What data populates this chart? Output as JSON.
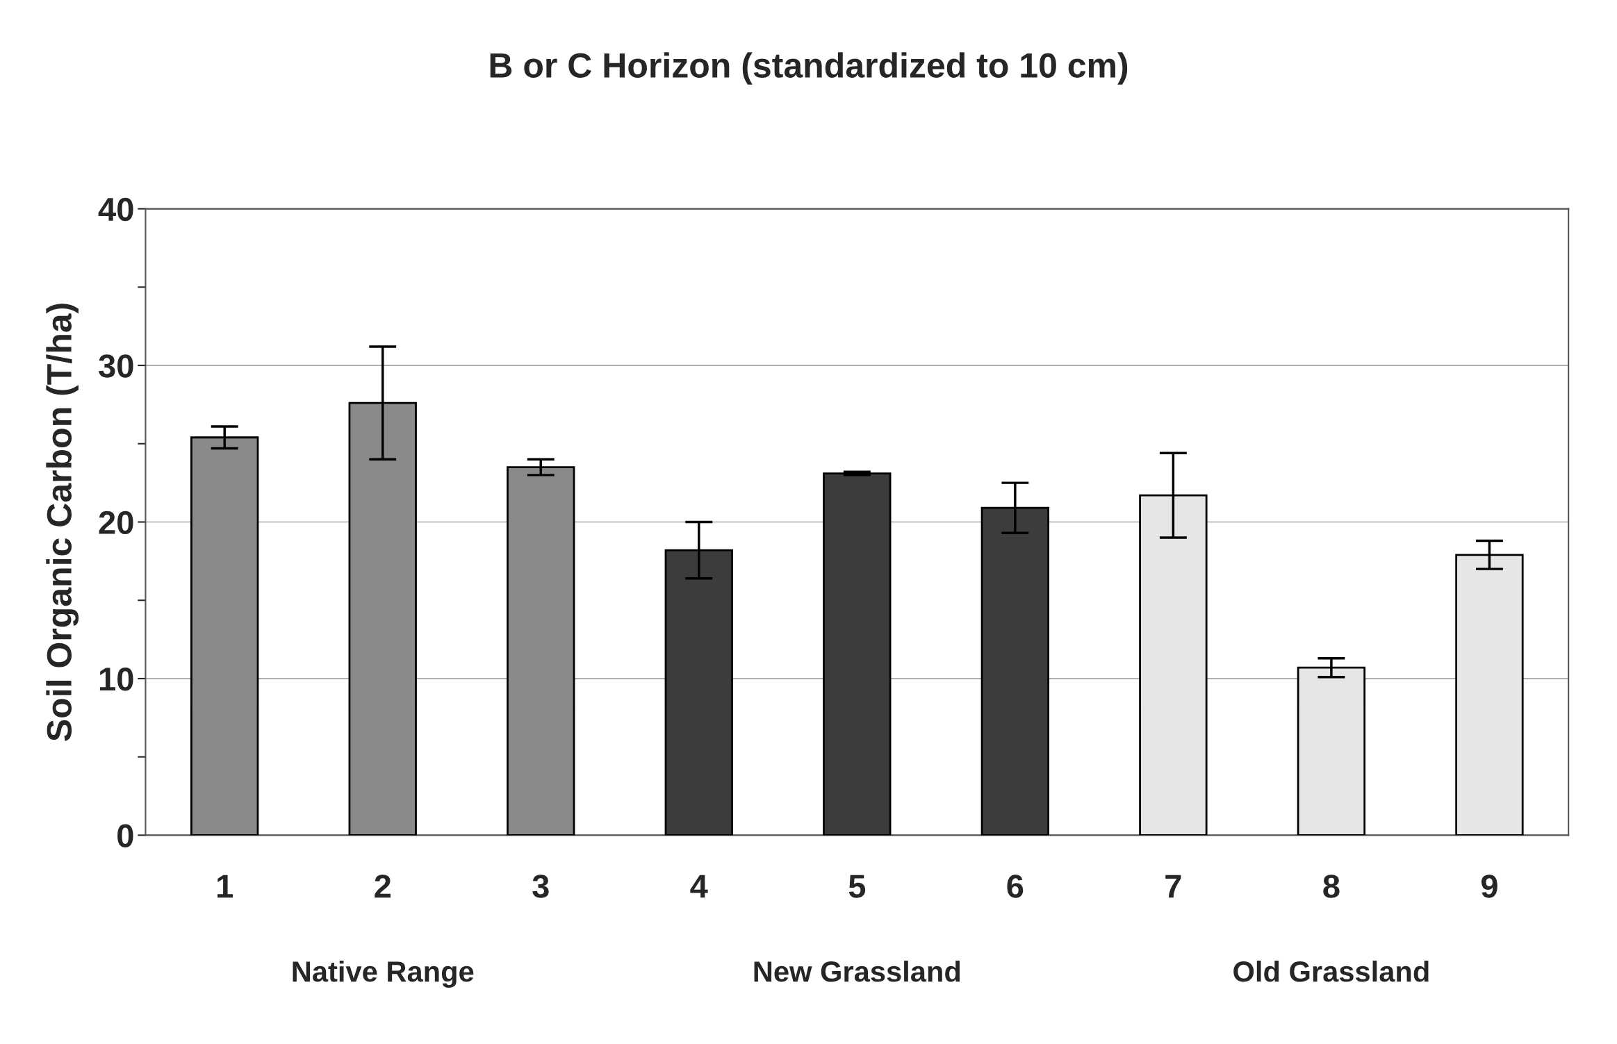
{
  "chart_data": {
    "type": "bar",
    "title": "B or C Horizon (standardized to 10 cm)",
    "ylabel": "Soil Organic Carbon (T/ha)",
    "categories": [
      "1",
      "2",
      "3",
      "4",
      "5",
      "6",
      "7",
      "8",
      "9"
    ],
    "values": [
      25.4,
      27.6,
      23.5,
      18.2,
      23.1,
      20.9,
      21.7,
      10.7,
      17.9
    ],
    "errors": [
      0.7,
      3.6,
      0.5,
      1.8,
      0.1,
      1.6,
      2.7,
      0.6,
      0.9
    ],
    "colors": [
      "#8a8a8a",
      "#8a8a8a",
      "#8a8a8a",
      "#3c3c3c",
      "#3c3c3c",
      "#3c3c3c",
      "#e6e6e6",
      "#e6e6e6",
      "#e6e6e6"
    ],
    "ylim": [
      0,
      40
    ],
    "yticks": [
      0,
      {
        "value": 5,
        "label": null
      },
      10,
      {
        "value": 15,
        "label": null
      },
      20,
      {
        "value": 25,
        "label": null
      },
      30,
      {
        "value": 35,
        "label": null
      },
      40
    ],
    "grid": "y",
    "annotations": [
      "Native Range",
      "New Grassland",
      "Old Grassland"
    ]
  }
}
